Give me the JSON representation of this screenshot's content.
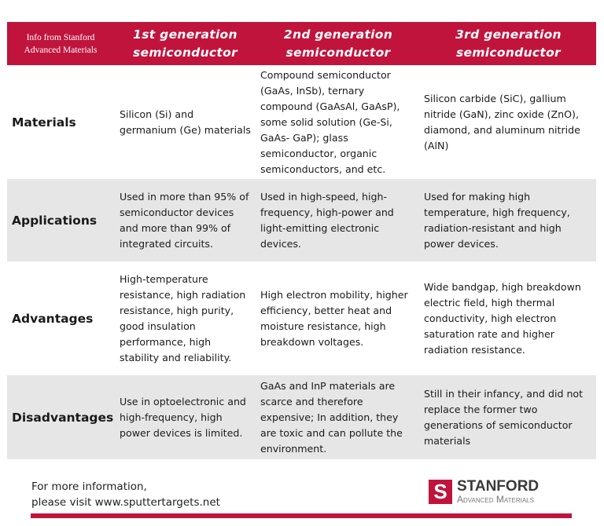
{
  "header": {
    "info": [
      "Info from Stanford",
      "Advanced Materials"
    ],
    "columns": [
      [
        "1st generation",
        "semiconductor"
      ],
      [
        "2nd generation",
        "semiconductor"
      ],
      [
        "3rd generation",
        "semiconductor"
      ]
    ]
  },
  "rows": [
    {
      "label": "Materials",
      "cells": [
        "Silicon (Si) and germanium (Ge) materials",
        "Compound semiconductor (GaAs, InSb), ternary compound (GaAsAl, GaAsP), some solid solution (Ge-Si, GaAs- GaP); glass semiconductor, organic semiconductors, and etc.",
        "Silicon carbide (SiC), gallium nitride (GaN), zinc oxide (ZnO), diamond, and aluminum nitride (AlN)"
      ]
    },
    {
      "label": "Applications",
      "cells": [
        "Used in more than 95% of semiconductor devices and more than 99% of integrated circuits.",
        "Used in high-speed, high-frequency, high-power and light-emitting electronic devices.",
        "Used for making high temperature, high frequency, radiation-resistant and high power devices."
      ]
    },
    {
      "label": "Advantages",
      "cells": [
        "High-temperature resistance, high radiation resistance, high purity, good insulation performance, high stability and reliability.",
        "High electron mobility, higher efficiency, better heat and moisture resistance, high breakdown voltages.",
        "Wide bandgap, high breakdown electric field, high thermal conductivity, high electron saturation rate and higher radiation resistance."
      ]
    },
    {
      "label": "Disadvantages",
      "cells": [
        "Use in optoelectronic and high-frequency, high power devices is limited.",
        "GaAs and InP materials are scarce and therefore expensive; In addition, they are toxic and can pollute the environment.",
        "Still in their infancy, and did not replace the former two generations of semiconductor materials"
      ]
    }
  ],
  "footer": {
    "line1": "For more information,",
    "line2": "please visit www.sputtertargets.net",
    "logo": {
      "mark": "S",
      "name": "STANFORD",
      "sub": "Advanced Materials"
    }
  },
  "colors": {
    "brand": "#c0143c",
    "stripe": "#e6e6e6"
  }
}
